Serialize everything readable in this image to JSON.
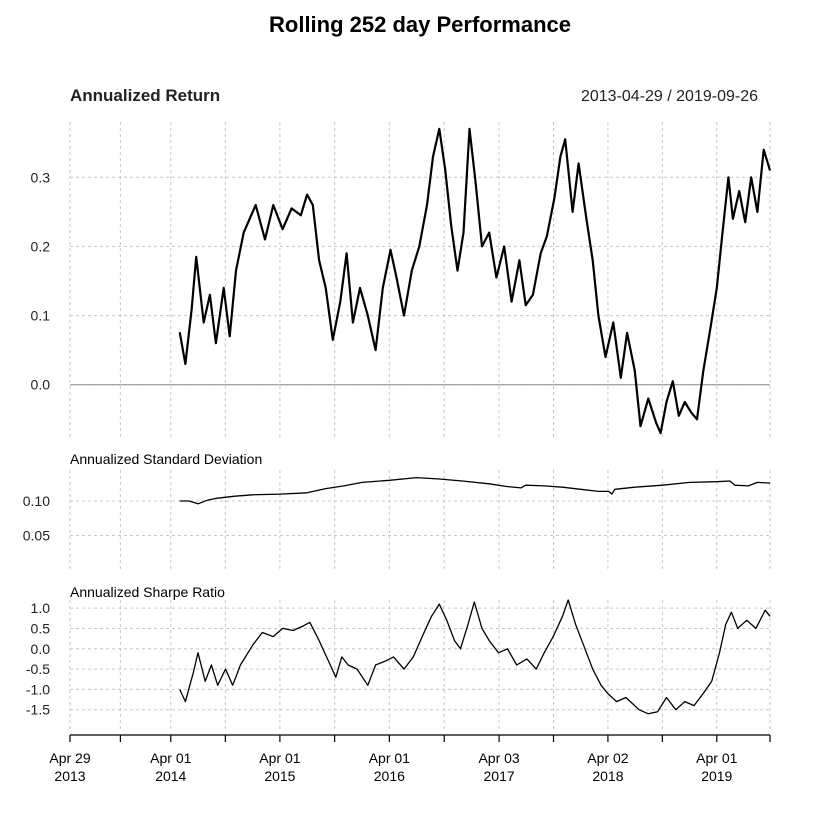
{
  "chart_data": {
    "type": "line",
    "title": "Rolling 252 day Performance",
    "date_range": "2013-04-29 / 2019-09-26",
    "x_ticks": [
      {
        "date": "2013-04-29",
        "line1": "Apr 29",
        "line2": "2013"
      },
      {
        "date": "2014-04-01",
        "line1": "Apr 01",
        "line2": "2014"
      },
      {
        "date": "2015-04-01",
        "line1": "Apr 01",
        "line2": "2015"
      },
      {
        "date": "2016-04-01",
        "line1": "Apr 01",
        "line2": "2016"
      },
      {
        "date": "2017-04-03",
        "line1": "Apr 03",
        "line2": "2017"
      },
      {
        "date": "2018-04-02",
        "line1": "Apr 02",
        "line2": "2018"
      },
      {
        "date": "2019-04-01",
        "line1": "Apr 01",
        "line2": "2019"
      }
    ],
    "panels": [
      {
        "id": "return",
        "title": "Annualized Return",
        "ylim": [
          -0.08,
          0.38
        ],
        "yticks": [
          0.0,
          0.1,
          0.2,
          0.3
        ],
        "ytick_labels": [
          "0.0",
          "0.1",
          "0.2",
          "0.3"
        ],
        "reference_line": 0.0,
        "series": [
          {
            "points": [
              [
                "2014-05-01",
                0.076
              ],
              [
                "2014-05-20",
                0.03
              ],
              [
                "2014-06-10",
                0.11
              ],
              [
                "2014-06-25",
                0.185
              ],
              [
                "2014-07-20",
                0.09
              ],
              [
                "2014-08-10",
                0.13
              ],
              [
                "2014-08-30",
                0.06
              ],
              [
                "2014-09-25",
                0.14
              ],
              [
                "2014-10-15",
                0.07
              ],
              [
                "2014-11-05",
                0.165
              ],
              [
                "2014-12-01",
                0.22
              ],
              [
                "2015-01-10",
                0.26
              ],
              [
                "2015-02-10",
                0.21
              ],
              [
                "2015-03-10",
                0.26
              ],
              [
                "2015-04-10",
                0.225
              ],
              [
                "2015-05-10",
                0.255
              ],
              [
                "2015-06-10",
                0.245
              ],
              [
                "2015-07-01",
                0.275
              ],
              [
                "2015-07-20",
                0.26
              ],
              [
                "2015-08-10",
                0.18
              ],
              [
                "2015-09-01",
                0.14
              ],
              [
                "2015-09-25",
                0.065
              ],
              [
                "2015-10-20",
                0.12
              ],
              [
                "2015-11-10",
                0.19
              ],
              [
                "2015-12-01",
                0.09
              ],
              [
                "2015-12-25",
                0.14
              ],
              [
                "2016-01-20",
                0.1
              ],
              [
                "2016-02-15",
                0.05
              ],
              [
                "2016-03-10",
                0.14
              ],
              [
                "2016-04-05",
                0.195
              ],
              [
                "2016-04-25",
                0.155
              ],
              [
                "2016-05-20",
                0.1
              ],
              [
                "2016-06-15",
                0.165
              ],
              [
                "2016-07-10",
                0.2
              ],
              [
                "2016-08-05",
                0.26
              ],
              [
                "2016-08-25",
                0.33
              ],
              [
                "2016-09-15",
                0.37
              ],
              [
                "2016-10-05",
                0.31
              ],
              [
                "2016-10-25",
                0.23
              ],
              [
                "2016-11-15",
                0.165
              ],
              [
                "2016-12-05",
                0.22
              ],
              [
                "2016-12-25",
                0.37
              ],
              [
                "2017-01-15",
                0.29
              ],
              [
                "2017-02-05",
                0.2
              ],
              [
                "2017-03-01",
                0.22
              ],
              [
                "2017-03-25",
                0.155
              ],
              [
                "2017-04-20",
                0.2
              ],
              [
                "2017-05-15",
                0.12
              ],
              [
                "2017-06-10",
                0.18
              ],
              [
                "2017-07-01",
                0.115
              ],
              [
                "2017-07-25",
                0.13
              ],
              [
                "2017-08-20",
                0.19
              ],
              [
                "2017-09-10",
                0.215
              ],
              [
                "2017-10-05",
                0.27
              ],
              [
                "2017-10-25",
                0.33
              ],
              [
                "2017-11-10",
                0.355
              ],
              [
                "2017-12-05",
                0.25
              ],
              [
                "2017-12-25",
                0.32
              ],
              [
                "2018-01-20",
                0.24
              ],
              [
                "2018-02-10",
                0.18
              ],
              [
                "2018-03-01",
                0.1
              ],
              [
                "2018-03-25",
                0.04
              ],
              [
                "2018-04-20",
                0.09
              ],
              [
                "2018-05-15",
                0.01
              ],
              [
                "2018-06-05",
                0.075
              ],
              [
                "2018-07-01",
                0.02
              ],
              [
                "2018-07-20",
                -0.06
              ],
              [
                "2018-08-15",
                -0.02
              ],
              [
                "2018-09-10",
                -0.055
              ],
              [
                "2018-09-25",
                -0.07
              ],
              [
                "2018-10-15",
                -0.025
              ],
              [
                "2018-11-05",
                0.005
              ],
              [
                "2018-11-25",
                -0.045
              ],
              [
                "2018-12-15",
                -0.025
              ],
              [
                "2019-01-05",
                -0.04
              ],
              [
                "2019-01-25",
                -0.05
              ],
              [
                "2019-02-15",
                0.02
              ],
              [
                "2019-03-10",
                0.08
              ],
              [
                "2019-04-01",
                0.14
              ],
              [
                "2019-04-20",
                0.22
              ],
              [
                "2019-05-10",
                0.3
              ],
              [
                "2019-05-25",
                0.24
              ],
              [
                "2019-06-15",
                0.28
              ],
              [
                "2019-07-05",
                0.235
              ],
              [
                "2019-07-25",
                0.3
              ],
              [
                "2019-08-15",
                0.25
              ],
              [
                "2019-09-05",
                0.34
              ],
              [
                "2019-09-26",
                0.31
              ]
            ]
          }
        ]
      },
      {
        "id": "stdev",
        "title": "Annualized Standard Deviation",
        "ylim": [
          0.0,
          0.145
        ],
        "yticks": [
          0.05,
          0.1
        ],
        "ytick_labels": [
          "0.05",
          "0.10"
        ],
        "series": [
          {
            "points": [
              [
                "2014-05-01",
                0.1
              ],
              [
                "2014-06-01",
                0.1
              ],
              [
                "2014-07-01",
                0.096
              ],
              [
                "2014-08-01",
                0.101
              ],
              [
                "2014-09-01",
                0.104
              ],
              [
                "2014-11-01",
                0.107
              ],
              [
                "2015-01-01",
                0.109
              ],
              [
                "2015-04-01",
                0.11
              ],
              [
                "2015-07-01",
                0.112
              ],
              [
                "2015-09-01",
                0.118
              ],
              [
                "2015-11-01",
                0.122
              ],
              [
                "2016-01-01",
                0.127
              ],
              [
                "2016-04-01",
                0.13
              ],
              [
                "2016-07-01",
                0.134
              ],
              [
                "2016-09-15",
                0.132
              ],
              [
                "2016-12-01",
                0.129
              ],
              [
                "2017-03-01",
                0.125
              ],
              [
                "2017-05-01",
                0.121
              ],
              [
                "2017-06-15",
                0.119
              ],
              [
                "2017-07-01",
                0.123
              ],
              [
                "2017-09-01",
                0.122
              ],
              [
                "2017-11-01",
                0.12
              ],
              [
                "2018-01-01",
                0.117
              ],
              [
                "2018-03-01",
                0.114
              ],
              [
                "2018-04-05",
                0.114
              ],
              [
                "2018-04-15",
                0.11
              ],
              [
                "2018-04-25",
                0.117
              ],
              [
                "2018-07-01",
                0.12
              ],
              [
                "2018-10-01",
                0.123
              ],
              [
                "2019-01-01",
                0.127
              ],
              [
                "2019-04-01",
                0.128
              ],
              [
                "2019-05-15",
                0.129
              ],
              [
                "2019-06-01",
                0.123
              ],
              [
                "2019-07-15",
                0.122
              ],
              [
                "2019-08-15",
                0.127
              ],
              [
                "2019-09-26",
                0.126
              ]
            ]
          }
        ]
      },
      {
        "id": "sharpe",
        "title": "Annualized Sharpe Ratio",
        "ylim": [
          -2.0,
          1.2
        ],
        "yticks": [
          -1.5,
          -1.0,
          -0.5,
          0.0,
          0.5,
          1.0
        ],
        "ytick_labels": [
          "-1.5",
          "-1.0",
          "-0.5",
          "0.0",
          "0.5",
          "1.0"
        ],
        "series": [
          {
            "points": [
              [
                "2014-05-01",
                -1.0
              ],
              [
                "2014-05-20",
                -1.3
              ],
              [
                "2014-06-15",
                -0.6
              ],
              [
                "2014-07-01",
                -0.1
              ],
              [
                "2014-07-25",
                -0.8
              ],
              [
                "2014-08-15",
                -0.4
              ],
              [
                "2014-09-05",
                -0.9
              ],
              [
                "2014-10-01",
                -0.5
              ],
              [
                "2014-10-25",
                -0.9
              ],
              [
                "2014-11-20",
                -0.4
              ],
              [
                "2015-01-01",
                0.1
              ],
              [
                "2015-02-01",
                0.4
              ],
              [
                "2015-03-10",
                0.3
              ],
              [
                "2015-04-10",
                0.5
              ],
              [
                "2015-05-15",
                0.45
              ],
              [
                "2015-06-15",
                0.55
              ],
              [
                "2015-07-10",
                0.65
              ],
              [
                "2015-08-10",
                0.2
              ],
              [
                "2015-09-10",
                -0.3
              ],
              [
                "2015-10-05",
                -0.7
              ],
              [
                "2015-10-25",
                -0.2
              ],
              [
                "2015-11-15",
                -0.4
              ],
              [
                "2015-12-15",
                -0.5
              ],
              [
                "2016-01-20",
                -0.9
              ],
              [
                "2016-02-15",
                -0.4
              ],
              [
                "2016-03-20",
                -0.3
              ],
              [
                "2016-04-15",
                -0.2
              ],
              [
                "2016-05-20",
                -0.5
              ],
              [
                "2016-06-20",
                -0.2
              ],
              [
                "2016-07-20",
                0.3
              ],
              [
                "2016-08-20",
                0.8
              ],
              [
                "2016-09-15",
                1.1
              ],
              [
                "2016-10-10",
                0.7
              ],
              [
                "2016-11-05",
                0.2
              ],
              [
                "2016-11-25",
                0.0
              ],
              [
                "2016-12-20",
                0.6
              ],
              [
                "2017-01-10",
                1.15
              ],
              [
                "2017-02-05",
                0.5
              ],
              [
                "2017-03-01",
                0.2
              ],
              [
                "2017-04-01",
                -0.1
              ],
              [
                "2017-05-01",
                0.0
              ],
              [
                "2017-06-01",
                -0.4
              ],
              [
                "2017-07-05",
                -0.25
              ],
              [
                "2017-08-05",
                -0.5
              ],
              [
                "2017-09-01",
                -0.1
              ],
              [
                "2017-10-01",
                0.3
              ],
              [
                "2017-11-01",
                0.8
              ],
              [
                "2017-11-20",
                1.2
              ],
              [
                "2017-12-15",
                0.6
              ],
              [
                "2018-01-10",
                0.1
              ],
              [
                "2018-02-10",
                -0.5
              ],
              [
                "2018-03-10",
                -0.9
              ],
              [
                "2018-04-01",
                -1.1
              ],
              [
                "2018-05-01",
                -1.3
              ],
              [
                "2018-06-01",
                -1.2
              ],
              [
                "2018-07-15",
                -1.5
              ],
              [
                "2018-08-15",
                -1.6
              ],
              [
                "2018-09-15",
                -1.55
              ],
              [
                "2018-10-15",
                -1.2
              ],
              [
                "2018-11-15",
                -1.5
              ],
              [
                "2018-12-15",
                -1.3
              ],
              [
                "2019-01-15",
                -1.4
              ],
              [
                "2019-02-15",
                -1.1
              ],
              [
                "2019-03-15",
                -0.8
              ],
              [
                "2019-04-10",
                -0.1
              ],
              [
                "2019-05-01",
                0.6
              ],
              [
                "2019-05-20",
                0.9
              ],
              [
                "2019-06-10",
                0.5
              ],
              [
                "2019-07-10",
                0.7
              ],
              [
                "2019-08-10",
                0.5
              ],
              [
                "2019-09-10",
                0.95
              ],
              [
                "2019-09-26",
                0.8
              ]
            ]
          }
        ]
      }
    ],
    "grid": true,
    "colors": {
      "line": "#000000",
      "grid": "#c8c8c8",
      "zero_line": "#999999"
    }
  }
}
